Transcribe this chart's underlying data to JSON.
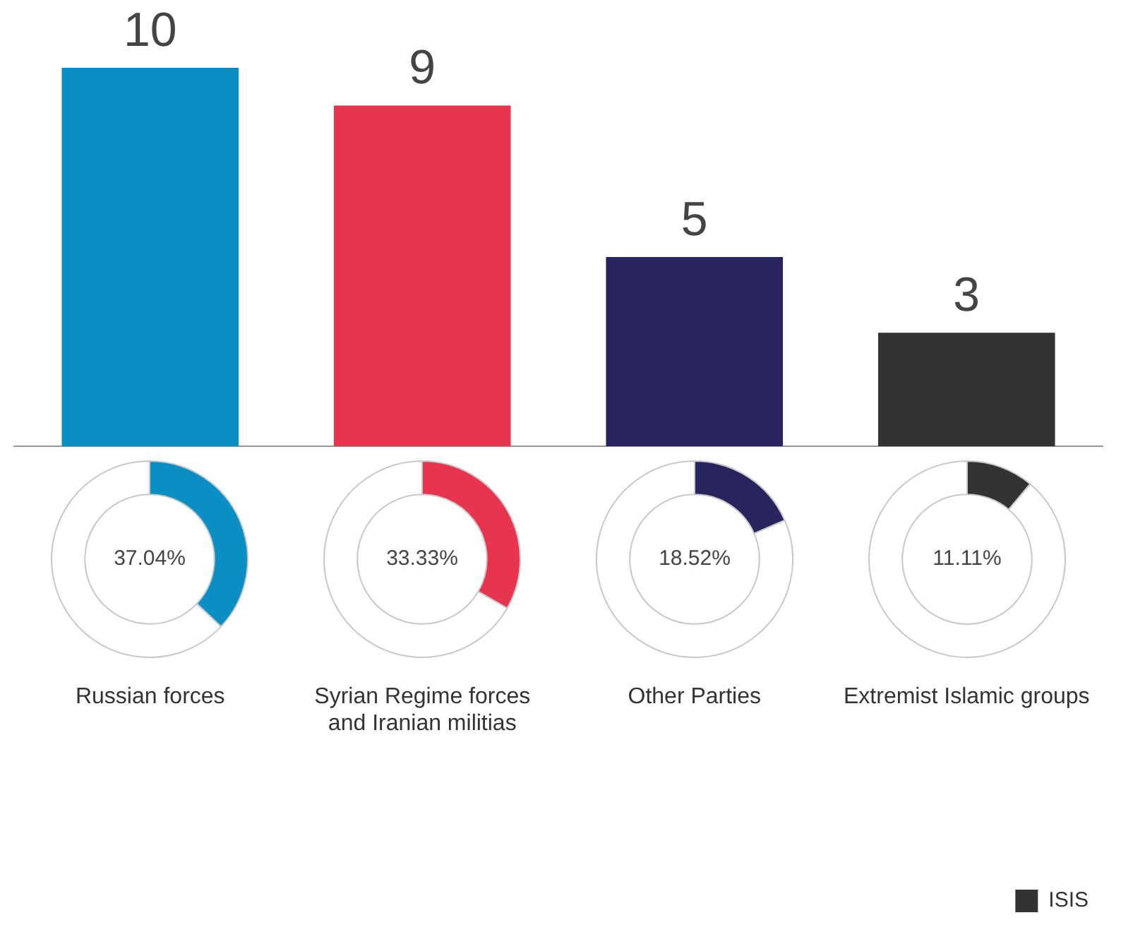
{
  "chart_data": [
    {
      "type": "bar",
      "categories": [
        "Russian forces",
        "Syrian Regime forces and Iranian militias",
        "Other Parties",
        "Extremist Islamic groups"
      ],
      "stacked": true,
      "data_labels": true,
      "legend": "bottom right",
      "series": [
        {
          "colors": [
            "#0a8fc4",
            "#e8344e",
            "#28245e",
            "#333333"
          ],
          "values": [
            10,
            9,
            5,
            null
          ]
        },
        {
          "name": "ISIS",
          "color": "#333333",
          "values": [
            null,
            null,
            null,
            3
          ]
        }
      ]
    },
    {
      "type": "donut",
      "categories": [
        null,
        null
      ],
      "values": [
        37.04,
        62.96
      ],
      "colors": [
        "#0a8fc4",
        "#ffffff"
      ],
      "value_labels": [
        "37.04%",
        null
      ]
    },
    {
      "type": "donut",
      "categories": [
        null,
        null
      ],
      "values": [
        33.33,
        66.67
      ],
      "colors": [
        "#e8344e",
        "#ffffff"
      ],
      "value_labels": [
        "33.33%",
        null
      ]
    },
    {
      "type": "donut",
      "categories": [
        null,
        null
      ],
      "values": [
        18.52,
        81.48
      ],
      "colors": [
        "#28245e",
        "#ffffff"
      ],
      "value_labels": [
        "18.52%",
        null
      ]
    },
    {
      "type": "donut",
      "categories": [
        null,
        null
      ],
      "values": [
        11.11,
        88.89
      ],
      "colors": [
        "#333333",
        "#ffffff"
      ],
      "value_labels": [
        "11.11%",
        null
      ]
    }
  ]
}
